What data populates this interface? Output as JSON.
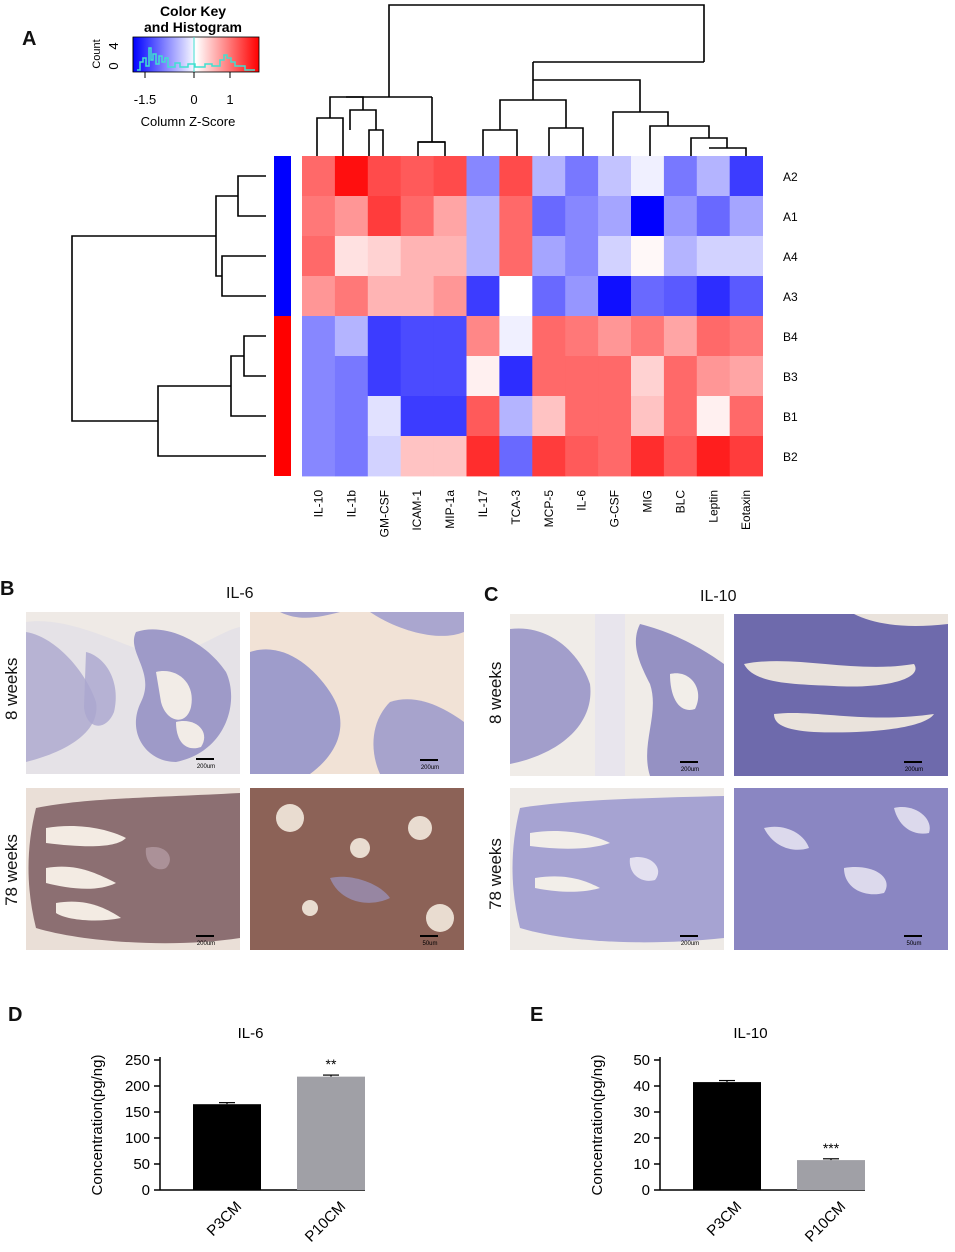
{
  "panels": {
    "A": "A",
    "B": "B",
    "C": "C",
    "D": "D",
    "E": "E"
  },
  "color_key": {
    "title_line1": "Color Key",
    "title_line2": "and Histogram",
    "ylabel": "Count",
    "yticks": [
      "0",
      "4"
    ],
    "xticks": [
      "-1.5",
      "0",
      "1"
    ],
    "xlabel": "Column Z-Score",
    "colors": {
      "low": "#0000ff",
      "mid": "#ffffff",
      "high": "#ff0000",
      "histogram": "#40e0d0"
    }
  },
  "heatmap": {
    "columns": [
      "IL-10",
      "IL-1b",
      "GM-CSF",
      "ICAM-1",
      "MIP-1a",
      "IL-17",
      "TCA-3",
      "MCP-5",
      "IL-6",
      "G-CSF",
      "MIG",
      "BLC",
      "Leptin",
      "Eotaxin"
    ],
    "rows": [
      "A2",
      "A1",
      "A4",
      "A3",
      "B4",
      "B3",
      "B1",
      "B2"
    ],
    "row_groups": [
      {
        "rows": [
          "A2",
          "A1",
          "A4",
          "A3"
        ],
        "color": "#0000ff"
      },
      {
        "rows": [
          "B4",
          "B3",
          "B1",
          "B2"
        ],
        "color": "#ff0000"
      }
    ],
    "zscores": [
      [
        1.0,
        1.6,
        1.2,
        1.1,
        1.2,
        -0.8,
        1.2,
        -0.5,
        -0.9,
        -0.4,
        -0.1,
        -0.9,
        -0.5,
        -1.3
      ],
      [
        0.9,
        0.7,
        1.3,
        1.0,
        0.6,
        -0.5,
        1.0,
        -1.0,
        -0.8,
        -0.6,
        -1.7,
        -0.7,
        -1.0,
        -0.6
      ],
      [
        1.0,
        0.2,
        0.3,
        0.5,
        0.5,
        -0.5,
        1.0,
        -0.6,
        -0.8,
        -0.3,
        0.05,
        -0.5,
        -0.3,
        -0.3
      ],
      [
        0.7,
        0.9,
        0.5,
        0.5,
        0.7,
        -1.3,
        0.0,
        -1.0,
        -0.7,
        -1.6,
        -1.0,
        -1.1,
        -1.4,
        -1.1
      ],
      [
        -0.8,
        -0.5,
        -1.3,
        -1.2,
        -1.2,
        0.8,
        -0.1,
        1.0,
        0.9,
        0.7,
        0.9,
        0.6,
        1.0,
        0.9
      ],
      [
        -0.8,
        -0.9,
        -1.3,
        -1.2,
        -1.2,
        0.1,
        -1.4,
        1.0,
        1.0,
        1.0,
        0.3,
        1.0,
        0.7,
        0.6
      ],
      [
        -0.8,
        -0.9,
        -0.2,
        -1.3,
        -1.3,
        1.1,
        -0.5,
        0.4,
        1.0,
        1.0,
        0.4,
        1.0,
        0.1,
        1.0
      ],
      [
        -0.8,
        -0.9,
        -0.3,
        0.4,
        0.4,
        1.4,
        -1.0,
        1.3,
        1.1,
        1.0,
        1.4,
        1.1,
        1.5,
        1.3
      ]
    ]
  },
  "ihc": {
    "B": {
      "title": "IL-6",
      "rows": [
        "8 weeks",
        "78 weeks"
      ],
      "scales": [
        "200um",
        "200um",
        "200um",
        "50um"
      ]
    },
    "C": {
      "title": "IL-10",
      "rows": [
        "8 weeks",
        "78 weeks"
      ],
      "scales": [
        "200um",
        "200um",
        "200um",
        "50um"
      ]
    }
  },
  "chart_data": [
    {
      "type": "bar",
      "title": "IL-6",
      "categories": [
        "P3CM",
        "P10CM"
      ],
      "values": [
        165,
        218
      ],
      "errors": [
        3,
        3
      ],
      "annotations": [
        "",
        "**"
      ],
      "ylabel": "Concentration(pg/ng)",
      "ylim": [
        0,
        250
      ],
      "yticks": [
        0,
        50,
        100,
        150,
        200,
        250
      ],
      "colors": [
        "#000000",
        "#a0a0a6"
      ]
    },
    {
      "type": "bar",
      "title": "IL-10",
      "categories": [
        "P3CM",
        "P10CM"
      ],
      "values": [
        41.5,
        11.5
      ],
      "errors": [
        0.6,
        0.5
      ],
      "annotations": [
        "",
        "***"
      ],
      "ylabel": "Concentration(pg/ng)",
      "ylim": [
        0,
        50
      ],
      "yticks": [
        0,
        10,
        20,
        30,
        40,
        50
      ],
      "colors": [
        "#000000",
        "#a0a0a6"
      ]
    }
  ]
}
